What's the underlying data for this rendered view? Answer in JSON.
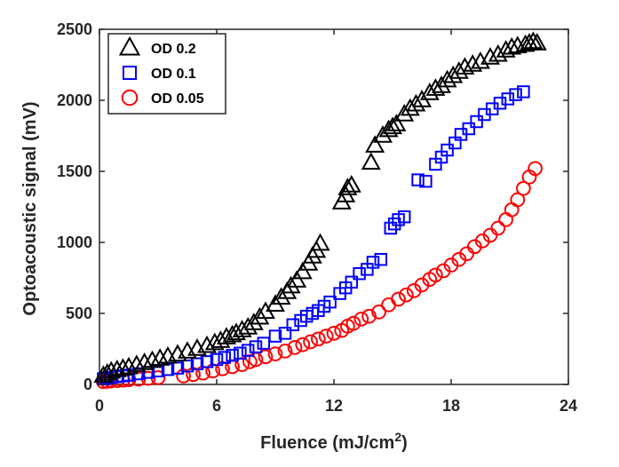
{
  "chart_data": {
    "type": "scatter",
    "title": "",
    "xlabel": "Fluence (mJ/cm",
    "xlabel_sup": "2",
    "xlabel_end": ")",
    "ylabel": "Optoacoustic signal (mV)",
    "xlim": [
      0,
      24
    ],
    "ylim": [
      0,
      2500
    ],
    "xticks": [
      0,
      6,
      12,
      18,
      24
    ],
    "yticks": [
      0,
      500,
      1000,
      1500,
      2000,
      2500
    ],
    "grid": false,
    "legend_position": "top-left",
    "series": [
      {
        "name": "OD 0.2",
        "marker": "triangle",
        "color": "#000000",
        "x": [
          0.2,
          0.4,
          0.6,
          0.9,
          1.2,
          1.5,
          1.9,
          2.3,
          2.7,
          3.1,
          3.5,
          4.0,
          4.5,
          5.0,
          5.5,
          5.9,
          6.2,
          6.5,
          6.8,
          7.0,
          7.3,
          7.6,
          7.9,
          8.2,
          8.5,
          9.0,
          9.3,
          9.6,
          9.8,
          10.1,
          10.4,
          10.7,
          10.9,
          11.1,
          11.3,
          12.4,
          12.6,
          12.7,
          12.9,
          13.9,
          14.1,
          14.5,
          14.8,
          15.0,
          15.2,
          15.6,
          15.9,
          16.2,
          16.5,
          16.9,
          17.2,
          17.5,
          17.8,
          18.1,
          18.4,
          18.7,
          19.1,
          19.5,
          20.0,
          20.4,
          20.8,
          21.1,
          21.4,
          21.8,
          22.0,
          22.2,
          22.4
        ],
        "y": [
          60,
          75,
          90,
          100,
          110,
          120,
          135,
          150,
          165,
          180,
          195,
          210,
          230,
          250,
          270,
          290,
          305,
          330,
          345,
          360,
          380,
          400,
          430,
          470,
          510,
          560,
          610,
          650,
          690,
          730,
          790,
          850,
          900,
          940,
          990,
          1280,
          1330,
          1380,
          1400,
          1560,
          1680,
          1750,
          1790,
          1810,
          1830,
          1900,
          1940,
          1970,
          2000,
          2050,
          2080,
          2100,
          2140,
          2170,
          2200,
          2230,
          2250,
          2270,
          2300,
          2320,
          2350,
          2370,
          2380,
          2390,
          2400,
          2410,
          2400
        ]
      },
      {
        "name": "OD 0.1",
        "marker": "square",
        "color": "#0000ff",
        "x": [
          0.2,
          0.4,
          0.6,
          0.9,
          1.2,
          1.5,
          2.0,
          2.5,
          3.0,
          3.5,
          4.0,
          4.5,
          5.0,
          5.5,
          6.0,
          6.4,
          6.8,
          7.2,
          7.6,
          8.0,
          8.4,
          9.0,
          9.5,
          9.9,
          10.3,
          10.6,
          10.9,
          11.2,
          11.5,
          11.8,
          12.3,
          12.6,
          12.9,
          13.3,
          13.7,
          14.0,
          14.4,
          14.9,
          15.1,
          15.3,
          15.6,
          16.3,
          16.7,
          17.2,
          17.5,
          17.8,
          18.2,
          18.5,
          18.9,
          19.3,
          19.7,
          20.1,
          20.5,
          20.9,
          21.3,
          21.7
        ],
        "y": [
          40,
          45,
          50,
          55,
          60,
          65,
          75,
          85,
          95,
          105,
          115,
          130,
          145,
          160,
          175,
          190,
          205,
          220,
          240,
          265,
          290,
          340,
          360,
          420,
          450,
          480,
          500,
          520,
          550,
          580,
          640,
          680,
          720,
          780,
          810,
          860,
          880,
          1100,
          1130,
          1160,
          1180,
          1440,
          1430,
          1550,
          1600,
          1650,
          1700,
          1760,
          1800,
          1850,
          1900,
          1940,
          1980,
          2010,
          2040,
          2060
        ]
      },
      {
        "name": "OD 0.05",
        "marker": "circle",
        "color": "#ff0000",
        "x": [
          0.2,
          0.4,
          0.6,
          0.9,
          1.2,
          1.5,
          2.0,
          2.5,
          3.0,
          4.3,
          4.8,
          5.3,
          5.8,
          6.3,
          6.8,
          7.3,
          7.7,
          8.0,
          8.5,
          9.0,
          9.5,
          10.0,
          10.4,
          10.8,
          11.2,
          11.6,
          12.0,
          12.4,
          12.7,
          13.0,
          13.4,
          13.8,
          14.3,
          14.8,
          15.3,
          15.7,
          16.1,
          16.5,
          16.9,
          17.2,
          17.6,
          18.0,
          18.4,
          18.8,
          19.2,
          19.6,
          20.0,
          20.4,
          20.8,
          21.1,
          21.4,
          21.7,
          22.0,
          22.3
        ],
        "y": [
          20,
          22,
          25,
          27,
          30,
          33,
          38,
          43,
          48,
          60,
          70,
          80,
          95,
          110,
          125,
          140,
          160,
          175,
          195,
          215,
          235,
          260,
          280,
          300,
          320,
          340,
          360,
          380,
          410,
          430,
          460,
          480,
          510,
          560,
          600,
          630,
          660,
          700,
          740,
          770,
          800,
          840,
          880,
          920,
          970,
          1010,
          1050,
          1100,
          1160,
          1230,
          1300,
          1380,
          1460,
          1520
        ]
      }
    ]
  }
}
